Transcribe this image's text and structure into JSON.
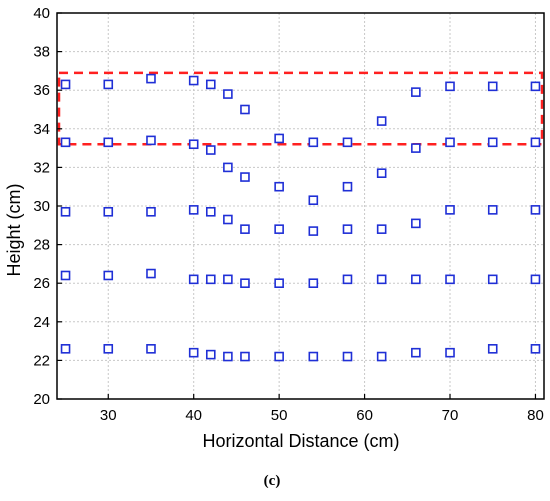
{
  "chart_data": {
    "type": "scatter",
    "title": "",
    "xlabel": "Horizontal Distance (cm)",
    "ylabel": "Height (cm)",
    "xlim": [
      24,
      81
    ],
    "ylim": [
      20,
      40
    ],
    "x_ticks": [
      30,
      40,
      50,
      60,
      70,
      80
    ],
    "y_ticks": [
      20,
      22,
      24,
      26,
      28,
      30,
      32,
      34,
      36,
      38,
      40
    ],
    "grid": true,
    "legend": "none",
    "marker": "open-square",
    "marker_color": "#1f2fd6",
    "highlight_color": "#ff2020",
    "highlight_band": {
      "y_range": [
        33.2,
        36.9
      ],
      "style": "dashed-rectangle"
    },
    "series": [
      {
        "points": [
          [
            25,
            36.3
          ],
          [
            30,
            36.3
          ],
          [
            35,
            36.6
          ],
          [
            40,
            36.5
          ],
          [
            42,
            36.3
          ],
          [
            44,
            35.8
          ],
          [
            46,
            35.0
          ],
          [
            62,
            34.4
          ],
          [
            66,
            35.9
          ],
          [
            70,
            36.2
          ],
          [
            75,
            36.2
          ],
          [
            80,
            36.2
          ]
        ]
      },
      {
        "points": [
          [
            25,
            33.3
          ],
          [
            30,
            33.3
          ],
          [
            35,
            33.4
          ],
          [
            40,
            33.2
          ],
          [
            42,
            32.9
          ],
          [
            44,
            32.0
          ],
          [
            46,
            31.5
          ],
          [
            50,
            33.5
          ],
          [
            54,
            33.3
          ],
          [
            58,
            33.3
          ],
          [
            66,
            33.0
          ],
          [
            70,
            33.3
          ],
          [
            75,
            33.3
          ],
          [
            80,
            33.3
          ]
        ]
      },
      {
        "points": [
          [
            50,
            31.0
          ],
          [
            54,
            30.3
          ],
          [
            58,
            31.0
          ],
          [
            62,
            31.7
          ]
        ]
      },
      {
        "points": [
          [
            25,
            29.7
          ],
          [
            30,
            29.7
          ],
          [
            35,
            29.7
          ],
          [
            40,
            29.8
          ],
          [
            42,
            29.7
          ],
          [
            44,
            29.3
          ],
          [
            46,
            28.8
          ],
          [
            50,
            28.8
          ],
          [
            54,
            28.7
          ],
          [
            58,
            28.8
          ],
          [
            62,
            28.8
          ],
          [
            66,
            29.1
          ],
          [
            70,
            29.8
          ],
          [
            75,
            29.8
          ],
          [
            80,
            29.8
          ]
        ]
      },
      {
        "points": [
          [
            25,
            26.4
          ],
          [
            30,
            26.4
          ],
          [
            35,
            26.5
          ],
          [
            40,
            26.2
          ],
          [
            42,
            26.2
          ],
          [
            44,
            26.2
          ],
          [
            46,
            26.0
          ],
          [
            50,
            26.0
          ],
          [
            54,
            26.0
          ],
          [
            58,
            26.2
          ],
          [
            62,
            26.2
          ],
          [
            66,
            26.2
          ],
          [
            70,
            26.2
          ],
          [
            75,
            26.2
          ],
          [
            80,
            26.2
          ]
        ]
      },
      {
        "points": [
          [
            25,
            22.6
          ],
          [
            30,
            22.6
          ],
          [
            35,
            22.6
          ],
          [
            40,
            22.4
          ],
          [
            42,
            22.3
          ],
          [
            44,
            22.2
          ],
          [
            46,
            22.2
          ],
          [
            50,
            22.2
          ],
          [
            54,
            22.2
          ],
          [
            58,
            22.2
          ],
          [
            62,
            22.2
          ],
          [
            66,
            22.4
          ],
          [
            70,
            22.4
          ],
          [
            75,
            22.6
          ],
          [
            80,
            22.6
          ]
        ]
      }
    ]
  },
  "figure": {
    "panel_label": "(c)"
  }
}
